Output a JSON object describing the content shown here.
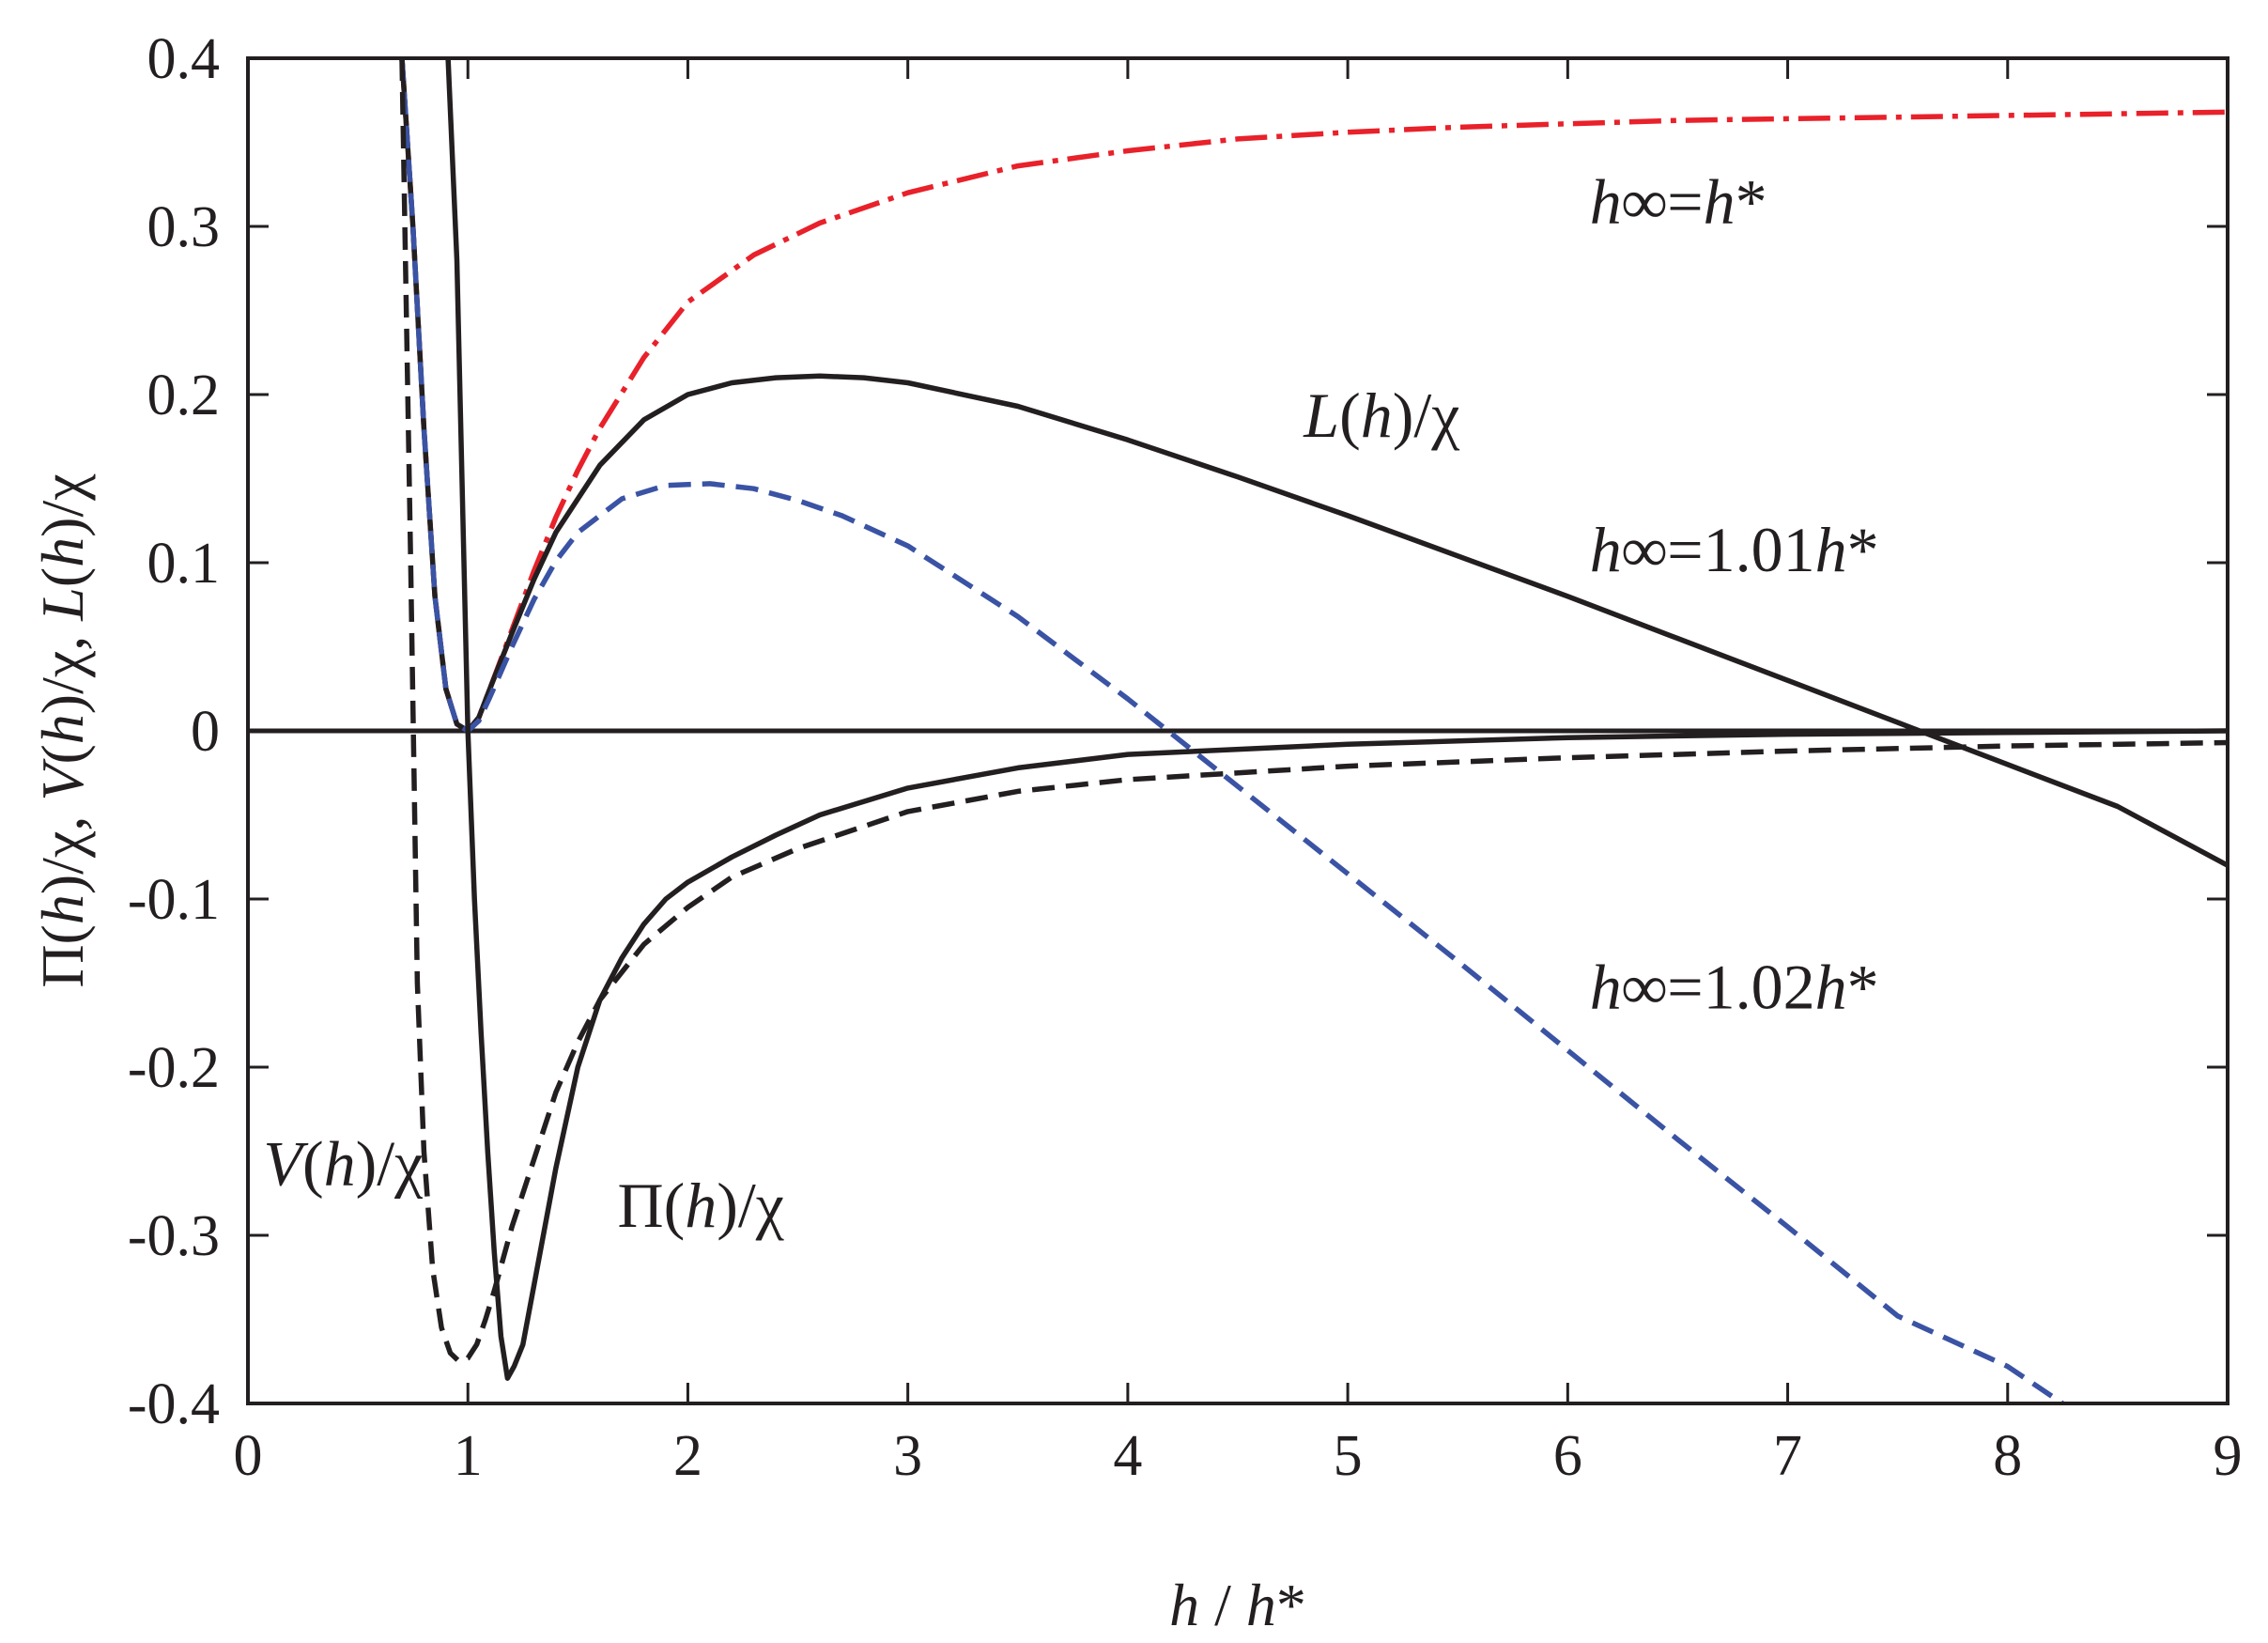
{
  "chart_data": {
    "type": "line",
    "title": "",
    "xlabel": {
      "parts": [
        {
          "t": "h",
          "italic": true
        },
        {
          "t": " / ",
          "italic": false
        },
        {
          "t": "h",
          "italic": true
        },
        {
          "t": "*",
          "italic": false
        }
      ]
    },
    "ylabel": {
      "parts": [
        {
          "t": "Π(",
          "italic": false
        },
        {
          "t": "h",
          "italic": true
        },
        {
          "t": ")/χ, ",
          "italic": false
        },
        {
          "t": "V",
          "italic": true
        },
        {
          "t": "(",
          "italic": false
        },
        {
          "t": "h",
          "italic": true
        },
        {
          "t": ")/χ, ",
          "italic": false
        },
        {
          "t": "L",
          "italic": true
        },
        {
          "t": "(",
          "italic": false
        },
        {
          "t": "h",
          "italic": true
        },
        {
          "t": ")/χ",
          "italic": false
        }
      ]
    },
    "xlim": [
      0,
      9
    ],
    "ylim": [
      -0.4,
      0.4
    ],
    "xticks": [
      0,
      1,
      2,
      3,
      4,
      5,
      6,
      7,
      8,
      9
    ],
    "xtick_labels": [
      "0",
      "1",
      "2",
      "3",
      "4",
      "5",
      "6",
      "7",
      "8",
      "9"
    ],
    "yticks": [
      0.4,
      0.3,
      0.2,
      0.1,
      0,
      -0.1,
      -0.2,
      -0.3,
      -0.4
    ],
    "ytick_labels": [
      "0.4",
      "0.3",
      "0.2",
      "0.1",
      "0",
      "-0.1",
      "-0.2",
      "-0.3",
      "-0.4"
    ],
    "grid": false,
    "legend": "none",
    "series": [
      {
        "color": "#e8212a",
        "dash": "dashdot",
        "x": [
          0.7,
          0.75,
          0.8,
          0.85,
          0.9,
          0.95,
          1.0,
          1.05,
          1.1,
          1.2,
          1.3,
          1.4,
          1.5,
          1.6,
          1.8,
          2.0,
          2.3,
          2.6,
          3.0,
          3.5,
          4.0,
          4.5,
          5.0,
          5.5,
          6.0,
          6.5,
          7.0,
          7.5,
          8.0,
          8.5,
          9.0
        ],
        "y": [
          0.4,
          0.3,
          0.18,
          0.08,
          0.025,
          0.004,
          0.0,
          0.008,
          0.025,
          0.06,
          0.095,
          0.127,
          0.155,
          0.18,
          0.222,
          0.255,
          0.283,
          0.302,
          0.32,
          0.336,
          0.345,
          0.352,
          0.356,
          0.359,
          0.361,
          0.363,
          0.364,
          0.365,
          0.366,
          0.367,
          0.368
        ]
      },
      {
        "color": "#231f20",
        "dash": "solid",
        "x": [
          0.7,
          0.75,
          0.8,
          0.85,
          0.9,
          0.95,
          1.0,
          1.05,
          1.1,
          1.2,
          1.3,
          1.4,
          1.6,
          1.8,
          2.0,
          2.2,
          2.4,
          2.6,
          2.8,
          3.0,
          3.5,
          4.0,
          4.5,
          5.0,
          5.5,
          6.0,
          6.5,
          7.0,
          7.5,
          8.0,
          8.5,
          9.0
        ],
        "y": [
          0.4,
          0.3,
          0.18,
          0.08,
          0.025,
          0.004,
          0.0,
          0.008,
          0.025,
          0.058,
          0.09,
          0.118,
          0.158,
          0.185,
          0.2,
          0.207,
          0.21,
          0.211,
          0.21,
          0.207,
          0.193,
          0.173,
          0.151,
          0.128,
          0.104,
          0.08,
          0.055,
          0.03,
          0.005,
          -0.02,
          -0.045,
          -0.08
        ]
      },
      {
        "color": "#3a53a4",
        "dash": "dashed",
        "x": [
          0.7,
          0.75,
          0.8,
          0.85,
          0.9,
          0.95,
          1.0,
          1.05,
          1.1,
          1.2,
          1.3,
          1.4,
          1.5,
          1.7,
          1.9,
          2.1,
          2.3,
          2.5,
          2.7,
          3.0,
          3.5,
          4.0,
          4.5,
          5.0,
          5.5,
          6.0,
          6.5,
          7.0,
          7.5,
          8.0,
          8.25
        ],
        "y": [
          0.4,
          0.3,
          0.18,
          0.08,
          0.025,
          0.004,
          0.0,
          0.006,
          0.02,
          0.05,
          0.078,
          0.101,
          0.118,
          0.138,
          0.146,
          0.147,
          0.144,
          0.137,
          0.128,
          0.11,
          0.068,
          0.019,
          -0.033,
          -0.085,
          -0.137,
          -0.19,
          -0.243,
          -0.295,
          -0.348,
          -0.378,
          -0.4
        ]
      },
      {
        "color": "#231f20",
        "dash": "solid",
        "x": [
          0.91,
          0.95,
          1.0,
          1.03,
          1.06,
          1.09,
          1.12,
          1.15,
          1.18,
          1.21,
          1.25,
          1.3,
          1.4,
          1.5,
          1.6,
          1.7,
          1.8,
          1.9,
          2.0,
          2.2,
          2.4,
          2.6,
          3.0,
          3.5,
          4.0,
          5.0,
          6.0,
          7.0,
          8.0,
          9.0
        ],
        "y": [
          0.4,
          0.28,
          0.0,
          -0.1,
          -0.18,
          -0.25,
          -0.31,
          -0.36,
          -0.385,
          -0.378,
          -0.365,
          -0.33,
          -0.26,
          -0.2,
          -0.16,
          -0.135,
          -0.115,
          -0.1,
          -0.09,
          -0.075,
          -0.062,
          -0.05,
          -0.034,
          -0.022,
          -0.014,
          -0.008,
          -0.004,
          -0.002,
          -0.001,
          0.0
        ]
      },
      {
        "color": "#231f20",
        "dash": "dashed",
        "x": [
          0.7,
          0.74,
          0.77,
          0.8,
          0.84,
          0.88,
          0.92,
          0.96,
          1.0,
          1.04,
          1.08,
          1.12,
          1.2,
          1.3,
          1.4,
          1.5,
          1.6,
          1.8,
          2.0,
          2.2,
          2.5,
          3.0,
          3.5,
          4.0,
          5.0,
          6.0,
          7.0,
          8.0,
          9.0
        ],
        "y": [
          0.4,
          0.1,
          -0.15,
          -0.25,
          -0.32,
          -0.355,
          -0.37,
          -0.375,
          -0.373,
          -0.365,
          -0.35,
          -0.333,
          -0.295,
          -0.255,
          -0.215,
          -0.185,
          -0.16,
          -0.127,
          -0.105,
          -0.087,
          -0.07,
          -0.048,
          -0.036,
          -0.029,
          -0.021,
          -0.016,
          -0.012,
          -0.009,
          -0.007
        ]
      }
    ],
    "annotations": [
      {
        "x": 6.1,
        "y": 0.302,
        "parts": [
          {
            "t": "h",
            "style": "it"
          },
          {
            "t": "∞",
            "style": "bold"
          },
          {
            "t": "=",
            "style": ""
          },
          {
            "t": "h",
            "style": "it"
          },
          {
            "t": "*",
            "style": ""
          }
        ]
      },
      {
        "x": 4.8,
        "y": 0.175,
        "parts": [
          {
            "t": "L",
            "style": "it"
          },
          {
            "t": "(",
            "style": ""
          },
          {
            "t": "h",
            "style": "it"
          },
          {
            "t": ")/χ",
            "style": ""
          }
        ]
      },
      {
        "x": 6.1,
        "y": 0.095,
        "parts": [
          {
            "t": "h",
            "style": "it"
          },
          {
            "t": "∞",
            "style": "bold"
          },
          {
            "t": "=1.01",
            "style": ""
          },
          {
            "t": "h",
            "style": "it"
          },
          {
            "t": "*",
            "style": ""
          }
        ]
      },
      {
        "x": 6.1,
        "y": -0.165,
        "parts": [
          {
            "t": "h",
            "style": "it"
          },
          {
            "t": "∞",
            "style": "bold"
          },
          {
            "t": "=1.02",
            "style": ""
          },
          {
            "t": "h",
            "style": "it"
          },
          {
            "t": "*",
            "style": ""
          }
        ]
      },
      {
        "x": 0.07,
        "y": -0.27,
        "parts": [
          {
            "t": "V",
            "style": "it"
          },
          {
            "t": "(",
            "style": ""
          },
          {
            "t": "h",
            "style": "it"
          },
          {
            "t": ")/χ",
            "style": ""
          }
        ]
      },
      {
        "x": 1.68,
        "y": -0.295,
        "parts": [
          {
            "t": "Π(",
            "style": ""
          },
          {
            "t": "h",
            "style": "it"
          },
          {
            "t": ")/χ",
            "style": ""
          }
        ]
      }
    ]
  }
}
